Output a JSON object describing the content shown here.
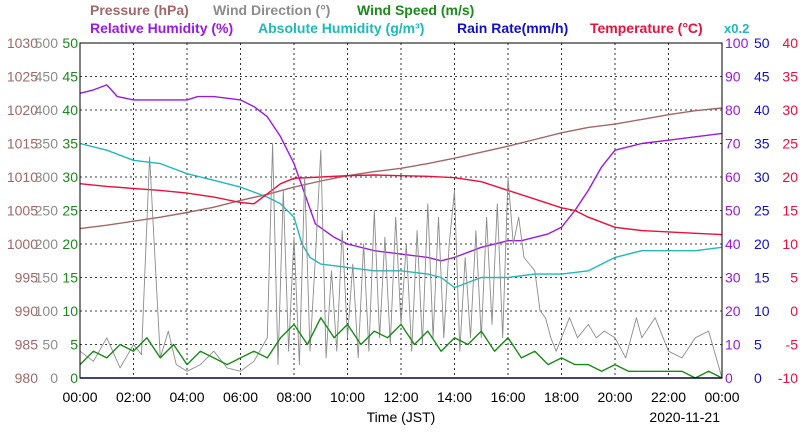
{
  "chart_data": {
    "type": "line",
    "xlabel": "Time (JST)",
    "date": "2020-11-21",
    "x_ticks": [
      "00:00",
      "02:00",
      "04:00",
      "06:00",
      "08:00",
      "10:00",
      "12:00",
      "14:00",
      "16:00",
      "18:00",
      "20:00",
      "22:00",
      "00:00"
    ],
    "x_range_hours": [
      0,
      24
    ],
    "grid": true,
    "legend": [
      {
        "text": "Pressure (hPa)",
        "color": "#a06868"
      },
      {
        "text": "Wind Direction (°)",
        "color": "#8c8c8c"
      },
      {
        "text": "Wind Speed (m/s)",
        "color": "#1a8a1a"
      },
      {
        "text": "Relative Humidity (%)",
        "color": "#9a1ae0"
      },
      {
        "text": "Absolute Humidity (g/m³)",
        "color": "#20b8b8"
      },
      {
        "text": "Rain Rate(mm/h)",
        "color": "#1010c8"
      },
      {
        "text": "Temperature (°C)",
        "color": "#e8103c"
      }
    ],
    "axes": {
      "pressure": {
        "name": "Pressure (hPa)",
        "range": [
          980,
          1030
        ],
        "ticks": [
          "1030",
          "1025",
          "1020",
          "1015",
          "1010",
          "1005",
          "1000",
          "995",
          "990",
          "985",
          "980"
        ],
        "color": "#a06868"
      },
      "wind_direction": {
        "name": "Wind Direction (°)",
        "range": [
          0,
          500
        ],
        "ticks": [
          "500",
          "450",
          "400",
          "350",
          "300",
          "250",
          "200",
          "150",
          "100",
          "50",
          "0"
        ],
        "color": "#8c8c8c"
      },
      "wind_speed": {
        "name": "Wind Speed (m/s)",
        "range": [
          0,
          50
        ],
        "ticks": [
          "50",
          "45",
          "40",
          "35",
          "30",
          "25",
          "20",
          "15",
          "10",
          "5",
          "0"
        ],
        "color": "#1a8a1a"
      },
      "relative_humidity": {
        "name": "Relative Humidity (%)",
        "range": [
          0,
          100
        ],
        "ticks": [
          "100",
          "90",
          "80",
          "70",
          "60",
          "50",
          "40",
          "30",
          "20",
          "10",
          "0"
        ],
        "color": "#9a1ae0"
      },
      "rain_rate": {
        "name": "Rain Rate(mm/h)",
        "range": [
          0,
          50
        ],
        "ticks": [
          "50",
          "45",
          "40",
          "35",
          "30",
          "25",
          "20",
          "15",
          "10",
          "5",
          "0"
        ],
        "color": "#1010c8"
      },
      "temperature": {
        "name": "Temperature (°C)",
        "range": [
          -10,
          40
        ],
        "ticks": [
          "40",
          "35",
          "30",
          "25",
          "20",
          "15",
          "10",
          "5",
          "0",
          "-5",
          "-10"
        ],
        "color": "#e8103c"
      }
    },
    "rain_rate_multiplier_label": "x0.2",
    "series": [
      {
        "name": "Pressure (hPa)",
        "axis": "pressure",
        "color": "#a06868",
        "x": [
          0,
          1,
          2,
          3,
          4,
          5,
          6,
          7,
          8,
          9,
          10,
          11,
          12,
          13,
          14,
          15,
          16,
          17,
          18,
          19,
          20,
          21,
          22,
          23,
          24
        ],
        "y": [
          1002.3,
          1002.8,
          1003.4,
          1004.0,
          1004.7,
          1005.5,
          1006.5,
          1007.4,
          1008.5,
          1009.4,
          1010.2,
          1010.8,
          1011.3,
          1012.0,
          1012.8,
          1013.7,
          1014.6,
          1015.6,
          1016.6,
          1017.4,
          1017.9,
          1018.6,
          1019.3,
          1019.9,
          1020.3
        ]
      },
      {
        "name": "Relative Humidity (%)",
        "axis": "relative_humidity",
        "color": "#9a1ae0",
        "x": [
          0,
          0.5,
          1.0,
          1.4,
          2.0,
          3.0,
          4.0,
          4.4,
          5.0,
          6.0,
          6.5,
          7.0,
          7.5,
          8.0,
          8.4,
          8.8,
          9.5,
          10,
          11,
          12,
          13,
          13.5,
          14,
          15,
          16,
          16.5,
          17,
          17.5,
          18,
          18.5,
          19,
          19.5,
          20,
          21,
          22,
          23,
          24
        ],
        "y": [
          85,
          86,
          87.5,
          84,
          83,
          83,
          83,
          84,
          84,
          83,
          81,
          78,
          72,
          64,
          55,
          46,
          42,
          40,
          38,
          37,
          36,
          35,
          36,
          39,
          41,
          41,
          42,
          43,
          45,
          50,
          56,
          63,
          68,
          70,
          71,
          72,
          73
        ]
      },
      {
        "name": "Absolute Humidity (g/m³)",
        "axis": "wind_speed",
        "color": "#20b8b8",
        "x": [
          0,
          1,
          2,
          3,
          4,
          5,
          6,
          7,
          7.5,
          8,
          8.3,
          8.6,
          9,
          10,
          11,
          12,
          13,
          13.5,
          14,
          15,
          16,
          17,
          18,
          19,
          19.5,
          20,
          21,
          22,
          23,
          24
        ],
        "y": [
          35,
          34,
          32.5,
          32,
          30.5,
          29.5,
          28.5,
          27,
          26,
          24,
          20,
          18,
          17,
          16.5,
          16,
          16,
          15.5,
          15,
          13.5,
          15,
          15,
          15.5,
          15.5,
          16,
          17,
          18,
          19,
          19,
          19,
          19.5
        ]
      },
      {
        "name": "Temperature (°C)",
        "axis": "temperature",
        "color": "#e8103c",
        "x": [
          0,
          1,
          2,
          3,
          4,
          5,
          6,
          6.5,
          7,
          7.5,
          8,
          9,
          10,
          11,
          12,
          13,
          14,
          15,
          16,
          17,
          18,
          18.5,
          19,
          20,
          21,
          22,
          23,
          24
        ],
        "y": [
          19,
          18.6,
          18.3,
          18,
          17.6,
          17,
          16.2,
          16,
          17.5,
          19,
          19.8,
          20,
          20.2,
          20.3,
          20.2,
          20.1,
          19.9,
          19.3,
          18,
          16.7,
          15.4,
          15,
          14,
          12.5,
          12,
          11.8,
          11.6,
          11.4
        ]
      },
      {
        "name": "Wind Direction (°)",
        "axis": "wind_direction",
        "color": "#8c8c8c",
        "x": [
          0,
          0.5,
          1,
          1.5,
          2,
          2.3,
          2.6,
          3,
          3.3,
          3.6,
          4,
          4.5,
          5,
          5.5,
          6,
          6.5,
          7,
          7.2,
          7.4,
          7.6,
          7.8,
          8,
          8.2,
          8.4,
          8.6,
          8.8,
          9,
          9.2,
          9.4,
          9.6,
          9.8,
          10,
          10.2,
          10.4,
          10.6,
          10.8,
          11,
          11.2,
          11.4,
          11.6,
          11.8,
          12,
          12.2,
          12.4,
          12.6,
          12.8,
          13,
          13.2,
          13.4,
          13.6,
          13.8,
          14,
          14.2,
          14.4,
          14.6,
          14.8,
          15,
          15.2,
          15.4,
          15.6,
          15.8,
          16,
          16.2,
          16.4,
          16.6,
          16.8,
          17,
          17.2,
          17.4,
          17.6,
          17.8,
          18,
          18.3,
          18.6,
          19,
          19.3,
          19.6,
          20,
          20.4,
          20.8,
          21,
          21.5,
          22,
          22.5,
          23,
          23.5,
          24
        ],
        "y": [
          40,
          25,
          60,
          15,
          50,
          35,
          330,
          30,
          70,
          20,
          10,
          20,
          40,
          15,
          10,
          25,
          60,
          350,
          20,
          280,
          40,
          210,
          20,
          300,
          40,
          180,
          340,
          30,
          160,
          40,
          220,
          60,
          170,
          30,
          200,
          40,
          250,
          60,
          210,
          50,
          240,
          80,
          200,
          40,
          220,
          50,
          260,
          60,
          240,
          60,
          200,
          280,
          40,
          180,
          60,
          220,
          60,
          240,
          80,
          260,
          60,
          300,
          200,
          240,
          180,
          170,
          160,
          100,
          90,
          60,
          40,
          60,
          90,
          60,
          80,
          60,
          70,
          60,
          30,
          90,
          60,
          90,
          40,
          30,
          60,
          70,
          0
        ]
      },
      {
        "name": "Wind Speed (m/s)",
        "axis": "wind_speed",
        "color": "#1a8a1a",
        "x": [
          0,
          0.5,
          1,
          1.5,
          2,
          2.5,
          3,
          3.5,
          4,
          4.5,
          5,
          5.5,
          6,
          6.5,
          7,
          7.5,
          8,
          8.5,
          9,
          9.5,
          10,
          10.5,
          11,
          11.5,
          12,
          12.5,
          13,
          13.5,
          14,
          14.5,
          15,
          15.5,
          16,
          16.5,
          17,
          17.5,
          18,
          18.5,
          19,
          19.5,
          20,
          20.5,
          21,
          21.5,
          22,
          22.5,
          23,
          23.5,
          24
        ],
        "y": [
          2,
          4,
          3,
          5,
          4,
          6,
          3,
          5,
          2,
          4,
          3,
          2,
          3,
          4,
          3,
          6,
          8,
          5,
          9,
          6,
          8,
          5,
          7,
          6,
          8,
          5,
          7,
          4,
          6,
          5,
          7,
          4,
          6,
          3,
          4,
          2,
          3,
          2,
          2,
          1,
          2,
          1,
          1,
          1,
          1,
          1,
          0,
          1,
          0
        ]
      },
      {
        "name": "Rain Rate(mm/h)",
        "axis": "rain_rate",
        "color": "#1010c8",
        "x": [
          0,
          24
        ],
        "y": [
          0,
          0
        ]
      }
    ]
  }
}
